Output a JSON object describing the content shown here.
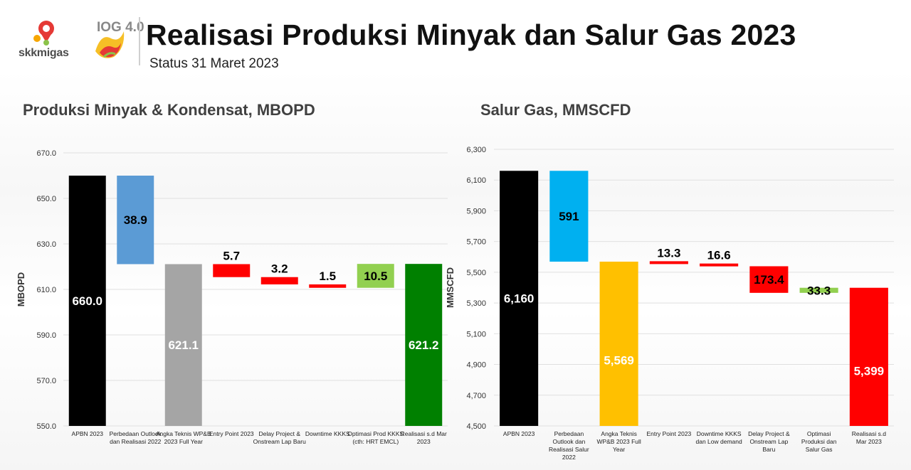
{
  "header": {
    "title": "Realisasi Produksi Minyak dan Salur Gas 2023",
    "subtitle": "Status 31 Maret 2023",
    "logo_skk_text": "skkmigas",
    "logo_ioga_text": "IOG 4.0"
  },
  "colors": {
    "black": "#000000",
    "blue": "#5b9bd5",
    "cyan": "#00b0f0",
    "gray": "#a5a5a5",
    "red": "#ff0000",
    "light_green": "#92d050",
    "green": "#00a000",
    "dark_green": "#008000",
    "yellow": "#ffc000"
  },
  "chart_data": [
    {
      "id": "oil",
      "type": "bar",
      "subtype": "waterfall",
      "title": "Produksi Minyak & Kondensat, MBOPD",
      "xlabel": "",
      "ylabel": "MBOPD",
      "ylim": [
        550,
        670
      ],
      "yticks": [
        550,
        570,
        590,
        610,
        630,
        650,
        670
      ],
      "tick_decimals": 1,
      "grid": true,
      "bars": [
        {
          "category": "APBN 2023",
          "start": 550,
          "end": 660,
          "label": "660.0",
          "color": "#000000",
          "text_color": "#ffffff",
          "label_pos": "inside"
        },
        {
          "category": "Perbedaan Outlook dan Realisasi 2022",
          "start": 621.1,
          "end": 660,
          "label": "38.9",
          "color": "#5b9bd5",
          "text_color": "#000000",
          "label_pos": "inside"
        },
        {
          "category": "Angka Teknis WP&B 2023 Full Year",
          "start": 550,
          "end": 621.1,
          "label": "621.1",
          "color": "#a5a5a5",
          "text_color": "#ffffff",
          "label_pos": "inside"
        },
        {
          "category": "Entry Point 2023",
          "start": 615.4,
          "end": 621.1,
          "label": "5.7",
          "color": "#ff0000",
          "text_color": "#000000",
          "label_pos": "above"
        },
        {
          "category": "Delay Project & Onstream Lap Baru",
          "start": 612.2,
          "end": 615.4,
          "label": "3.2",
          "color": "#ff0000",
          "text_color": "#000000",
          "label_pos": "above"
        },
        {
          "category": "Downtime KKKS",
          "start": 610.7,
          "end": 612.2,
          "label": "1.5",
          "color": "#ff0000",
          "text_color": "#000000",
          "label_pos": "above"
        },
        {
          "category": "Optimasi Prod KKKS (cth: HRT EMCL)",
          "start": 610.7,
          "end": 621.2,
          "label": "10.5",
          "color": "#92d050",
          "text_color": "#000000",
          "label_pos": "inside"
        },
        {
          "category": "Realisasi s.d Mar 2023",
          "start": 550,
          "end": 621.2,
          "label": "621.2",
          "color": "#008000",
          "text_color": "#ffffff",
          "label_pos": "inside"
        }
      ]
    },
    {
      "id": "gas",
      "type": "bar",
      "subtype": "waterfall",
      "title": "Salur Gas, MMSCFD",
      "xlabel": "",
      "ylabel": "MMSCFD",
      "ylim": [
        4500,
        6300
      ],
      "yticks": [
        4500,
        4700,
        4900,
        5100,
        5300,
        5500,
        5700,
        5900,
        6100,
        6300
      ],
      "tick_decimals": 0,
      "grid": true,
      "bars": [
        {
          "category": "APBN 2023",
          "start": 4500,
          "end": 6160,
          "label": "6,160",
          "color": "#000000",
          "text_color": "#ffffff",
          "label_pos": "inside"
        },
        {
          "category": "Perbedaan Outlook dan Realisasi Salur 2022",
          "start": 5569,
          "end": 6160,
          "label": "591",
          "color": "#00b0f0",
          "text_color": "#000000",
          "label_pos": "inside"
        },
        {
          "category": "Angka Teknis WP&B 2023 Full Year",
          "start": 4500,
          "end": 5569,
          "label": "5,569",
          "color": "#ffc000",
          "text_color": "#ffffff",
          "label_pos": "lower"
        },
        {
          "category": "Entry Point 2023",
          "start": 5556,
          "end": 5569,
          "label": "13.3",
          "color": "#ff0000",
          "text_color": "#000000",
          "label_pos": "above"
        },
        {
          "category": "Downtime KKKS dan Low demand",
          "start": 5539,
          "end": 5556,
          "label": "16.6",
          "color": "#ff0000",
          "text_color": "#000000",
          "label_pos": "above"
        },
        {
          "category": "Delay Project & Onstream Lap Baru",
          "start": 5366,
          "end": 5539,
          "label": "173.4",
          "color": "#ff0000",
          "text_color": "#000000",
          "label_pos": "inside"
        },
        {
          "category": "Optimasi Produksi dan Salur Gas",
          "start": 5366,
          "end": 5399,
          "label": "33.3",
          "color": "#92d050",
          "text_color": "#000000",
          "label_pos": "inside"
        },
        {
          "category": "Realisasi s.d Mar 2023",
          "start": 4500,
          "end": 5399,
          "label": "5,399",
          "color": "#ff0000",
          "text_color": "#ffffff",
          "label_pos": "lower"
        }
      ]
    }
  ]
}
